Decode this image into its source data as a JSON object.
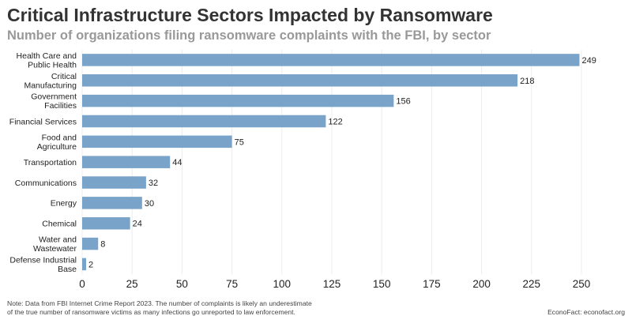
{
  "title": "Critical Infrastructure Sectors Impacted by Ransomware",
  "subtitle": "Number of organizations filing ransomware complaints with the FBI, by sector",
  "note": "Note: Data from FBI Internet Crime Report 2023. The number of complaints is likely an underestimate of the true number of ransomware victims as many infections go unreported to law enforcement.",
  "source": "EconoFact: econofact.org",
  "colors": {
    "bar": "#7aa3c9",
    "grid": "#ececec",
    "text": "#222222"
  },
  "chart_data": {
    "type": "bar",
    "orientation": "horizontal",
    "title": "Critical Infrastructure Sectors Impacted by Ransomware",
    "subtitle": "Number of organizations filing ransomware complaints with the FBI, by sector",
    "xlabel": "",
    "ylabel": "",
    "xlim": [
      0,
      250
    ],
    "xticks": [
      0,
      25,
      50,
      75,
      100,
      125,
      150,
      175,
      200,
      225,
      250
    ],
    "grid": true,
    "legend": "none",
    "categories": [
      [
        "Health Care and",
        "Public Health"
      ],
      [
        "Critical",
        "Manufacturing"
      ],
      [
        "Government",
        "Facilities"
      ],
      [
        "Financial Services"
      ],
      [
        "Food and",
        "Agriculture"
      ],
      [
        "Transportation"
      ],
      [
        "Communications"
      ],
      [
        "Energy"
      ],
      [
        "Chemical"
      ],
      [
        "Water and",
        "Wastewater"
      ],
      [
        "Defense Industrial",
        "Base"
      ]
    ],
    "values": [
      249,
      218,
      156,
      122,
      75,
      44,
      32,
      30,
      24,
      8,
      2
    ]
  }
}
